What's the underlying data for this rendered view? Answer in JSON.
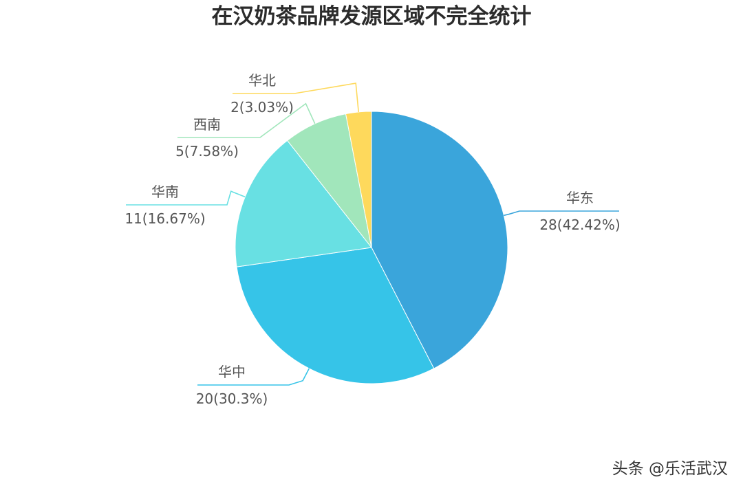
{
  "chart_data": {
    "type": "pie",
    "title": "在汉奶茶品牌发源区域不完全统计",
    "slices": [
      {
        "label": "华东",
        "value": 28,
        "value_label": "28(42.42%)",
        "color": "#3aa5db"
      },
      {
        "label": "华中",
        "value": 20,
        "value_label": "20(30.3%)",
        "color": "#36c4e8"
      },
      {
        "label": "华南",
        "value": 11,
        "value_label": "11(16.67%)",
        "color": "#68e0e3"
      },
      {
        "label": "西南",
        "value": 5,
        "value_label": "5(7.58%)",
        "color": "#a1e6bb"
      },
      {
        "label": "华北",
        "value": 2,
        "value_label": "2(3.03%)",
        "color": "#fed95c"
      }
    ],
    "start_angle": "12 o'clock",
    "direction": "clockwise"
  },
  "watermark": "头条 @乐活武汉"
}
